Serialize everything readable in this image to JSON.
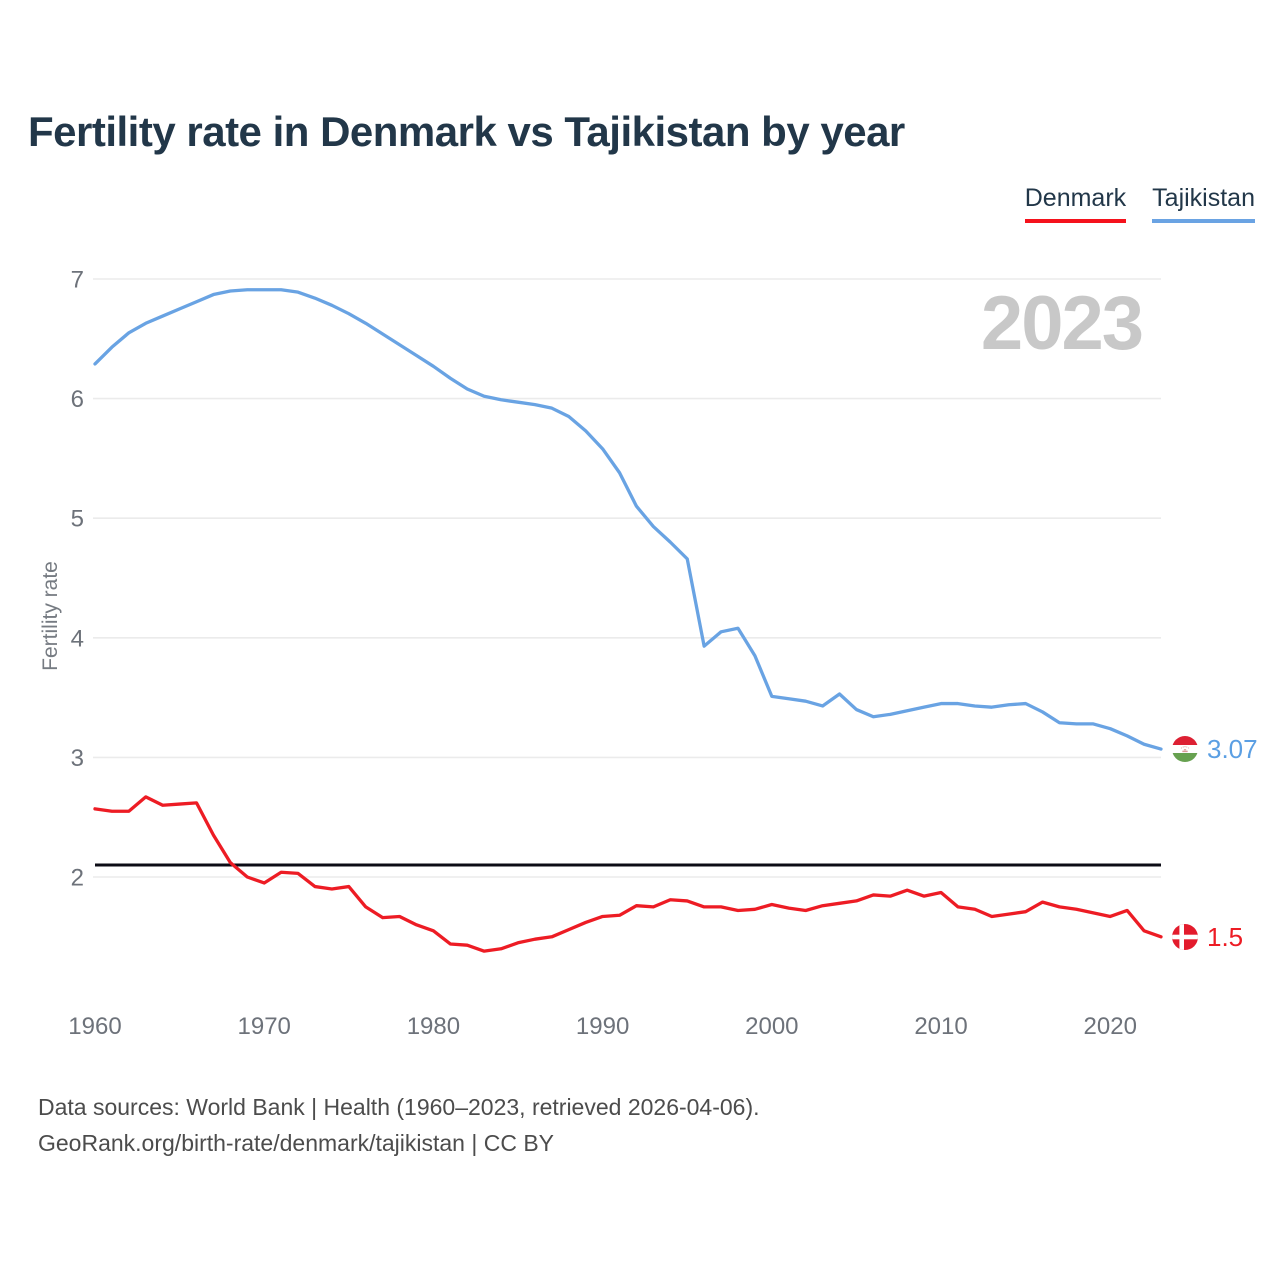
{
  "title": "Fertility rate in Denmark vs Tajikistan by year",
  "watermark": "2023",
  "legend": {
    "denmark": {
      "label": "Denmark",
      "color": "#f5121c"
    },
    "tajikistan": {
      "label": "Tajikistan",
      "color": "#6aa3e3"
    }
  },
  "y_axis": {
    "label": "Fertility rate",
    "ticks": [
      7,
      6,
      5,
      4,
      3,
      2
    ]
  },
  "x_axis": {
    "ticks": [
      1960,
      1970,
      1980,
      1990,
      2000,
      2010,
      2020
    ]
  },
  "end_labels": {
    "tajikistan": {
      "value": "3.07",
      "flag": "tajikistan-flag"
    },
    "denmark": {
      "value": "1.5",
      "flag": "denmark-flag"
    }
  },
  "footer": {
    "line1": "Data sources: World Bank | Health (1960–2023, retrieved 2026-04-06).",
    "line2": "GeoRank.org/birth-rate/denmark/tajikistan | CC BY"
  },
  "colors": {
    "title": "#223749",
    "grid": "#ebebeb",
    "tick_label": "#6d727a",
    "axis_title": "#767b82",
    "watermark": "#c8c8c8",
    "footer": "#4c4c4c",
    "reference_line": "#0c0c16",
    "denmark_line": "#ed1c24",
    "tajikistan_line": "#69a3e3"
  },
  "chart_data": {
    "type": "line",
    "title": "Fertility rate in Denmark vs Tajikistan by year",
    "xlabel": "",
    "ylabel": "Fertility rate",
    "xlim": [
      1960,
      2023
    ],
    "ylim": [
      1.3,
      7.2
    ],
    "grid": "horizontal",
    "legend_position": "top-right",
    "reference_line_y": 2.1,
    "x": [
      1960,
      1961,
      1962,
      1963,
      1964,
      1965,
      1966,
      1967,
      1968,
      1969,
      1970,
      1971,
      1972,
      1973,
      1974,
      1975,
      1976,
      1977,
      1978,
      1979,
      1980,
      1981,
      1982,
      1983,
      1984,
      1985,
      1986,
      1987,
      1988,
      1989,
      1990,
      1991,
      1992,
      1993,
      1994,
      1995,
      1996,
      1997,
      1998,
      1999,
      2000,
      2001,
      2002,
      2003,
      2004,
      2005,
      2006,
      2007,
      2008,
      2009,
      2010,
      2011,
      2012,
      2013,
      2014,
      2015,
      2016,
      2017,
      2018,
      2019,
      2020,
      2021,
      2022,
      2023
    ],
    "series": [
      {
        "name": "Denmark",
        "color": "#ed1c24",
        "values": [
          2.57,
          2.55,
          2.55,
          2.67,
          2.6,
          2.61,
          2.62,
          2.35,
          2.12,
          2.0,
          1.95,
          2.04,
          2.03,
          1.92,
          1.9,
          1.92,
          1.75,
          1.66,
          1.67,
          1.6,
          1.55,
          1.44,
          1.43,
          1.38,
          1.4,
          1.45,
          1.48,
          1.5,
          1.56,
          1.62,
          1.67,
          1.68,
          1.76,
          1.75,
          1.81,
          1.8,
          1.75,
          1.75,
          1.72,
          1.73,
          1.77,
          1.74,
          1.72,
          1.76,
          1.78,
          1.8,
          1.85,
          1.84,
          1.89,
          1.84,
          1.87,
          1.75,
          1.73,
          1.67,
          1.69,
          1.71,
          1.79,
          1.75,
          1.73,
          1.7,
          1.67,
          1.72,
          1.55,
          1.5
        ]
      },
      {
        "name": "Tajikistan",
        "color": "#69a3e3",
        "values": [
          6.29,
          6.43,
          6.55,
          6.63,
          6.69,
          6.75,
          6.81,
          6.87,
          6.9,
          6.91,
          6.91,
          6.91,
          6.89,
          6.84,
          6.78,
          6.71,
          6.63,
          6.54,
          6.45,
          6.36,
          6.27,
          6.17,
          6.08,
          6.02,
          5.99,
          5.97,
          5.95,
          5.92,
          5.85,
          5.73,
          5.58,
          5.38,
          5.1,
          4.93,
          4.8,
          4.66,
          3.93,
          4.05,
          4.08,
          3.85,
          3.51,
          3.49,
          3.47,
          3.43,
          3.53,
          3.4,
          3.34,
          3.36,
          3.39,
          3.42,
          3.45,
          3.45,
          3.43,
          3.42,
          3.44,
          3.45,
          3.38,
          3.29,
          3.28,
          3.28,
          3.24,
          3.18,
          3.11,
          3.07
        ]
      }
    ]
  }
}
